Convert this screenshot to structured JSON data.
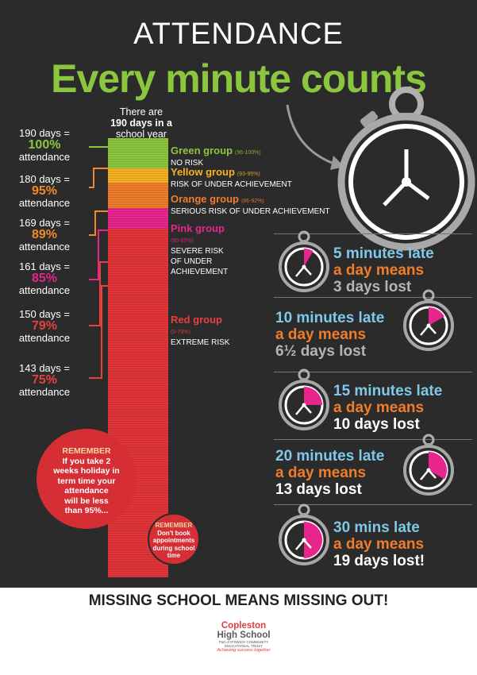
{
  "title": "ATTENDANCE",
  "headline": "Every minute counts",
  "bar_caption": {
    "line1": "There are",
    "line2": "190 days in a",
    "line3": "school year"
  },
  "levels": [
    {
      "days": "190 days =",
      "percent": "100%",
      "label": "attendance",
      "color": "#8cc63f"
    },
    {
      "days": "180 days =",
      "percent": "95%",
      "label": "attendance",
      "color": "#ef8a2c"
    },
    {
      "days": "169 days =",
      "percent": "89%",
      "label": "attendance",
      "color": "#ef8a2c"
    },
    {
      "days": "161 days =",
      "percent": "85%",
      "label": "attendance",
      "color": "#e8258c"
    },
    {
      "days": "150 days =",
      "percent": "79%",
      "label": "attendance",
      "color": "#e9403f"
    },
    {
      "days": "143 days =",
      "percent": "75%",
      "label": "attendance",
      "color": "#e9403f"
    }
  ],
  "groups": [
    {
      "name": "Green group",
      "range": "(96-100%)",
      "risk_lines": [
        "NO RISK"
      ],
      "color": "#8cc63f"
    },
    {
      "name": "Yellow group",
      "range": "(93-95%)",
      "risk_lines": [
        "RISK OF UNDER ACHIEVEMENT"
      ],
      "color": "#f5b324"
    },
    {
      "name": "Orange group",
      "range": "(86-92%)",
      "risk_lines": [
        "SERIOUS RISK OF UNDER ACHIEVEMENT"
      ],
      "color": "#ef7d2c"
    },
    {
      "name": "Pink group",
      "range": "(80-85%)",
      "risk_lines": [
        "SEVERE RISK",
        "OF UNDER",
        "ACHIEVEMENT"
      ],
      "color": "#e8258c"
    },
    {
      "name": "Red group",
      "range": "(0-79%)",
      "risk_lines": [
        "EXTREME RISK"
      ],
      "color": "#e9403f"
    }
  ],
  "bar_colors": {
    "green": "#8cc63f",
    "yellow": "#f5b324",
    "orange": "#ef7d2c",
    "pink": "#e8258c",
    "red": "#e2353a"
  },
  "lateness": [
    {
      "l1": "5 minutes late",
      "l2": "a day means",
      "l3": "3 days lost",
      "minutes": 5
    },
    {
      "l1": "10 minutes late",
      "l2": "a day means",
      "l3": "6½ days lost",
      "minutes": 10
    },
    {
      "l1": "15 minutes late",
      "l2": "a day means",
      "l3": "10 days lost",
      "minutes": 15
    },
    {
      "l1": "20 minutes late",
      "l2": "a day means",
      "l3": "13 days lost",
      "minutes": 20
    },
    {
      "l1": "30 mins late",
      "l2": "a day means",
      "l3": "19 days lost!",
      "minutes": 30
    }
  ],
  "reminders": [
    {
      "heading": "REMEMBER",
      "lines": [
        "If you take 2",
        "weeks holiday in",
        "term time your",
        "attendance",
        "will be less",
        "than 95%..."
      ]
    },
    {
      "heading": "REMEMBER",
      "lines": [
        "Don't book",
        "appointments",
        "during school",
        "time"
      ]
    }
  ],
  "footer": "MISSING SCHOOL MEANS MISSING OUT!",
  "logo": {
    "line1": "Copleston",
    "line2": "High School",
    "line3": "Part of IPSWICH COMMUNITY",
    "line3b": "EDUCATIONAL TRUST",
    "tagline": "Achieving success together"
  },
  "accent_colors": {
    "pink": "#e8258c",
    "blue": "#7fc8ea",
    "orange": "#ef7d2c"
  }
}
